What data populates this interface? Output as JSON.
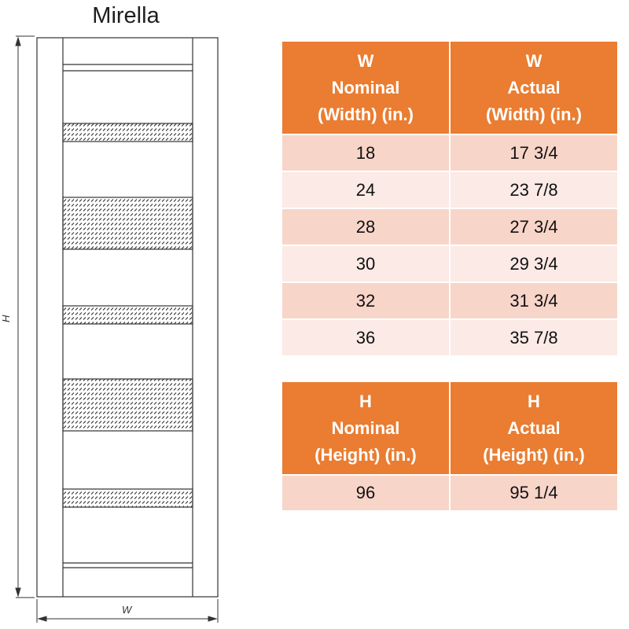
{
  "title": "Mirella",
  "drawing": {
    "height_label": "H",
    "width_label": "W"
  },
  "width_table": {
    "headers": [
      [
        "W",
        "Nominal",
        "(Width) (in.)"
      ],
      [
        "W",
        "Actual",
        "(Width) (in.)"
      ]
    ],
    "rows": [
      [
        "18",
        "17 3/4"
      ],
      [
        "24",
        "23 7/8"
      ],
      [
        "28",
        "27 3/4"
      ],
      [
        "30",
        "29 3/4"
      ],
      [
        "32",
        "31 3/4"
      ],
      [
        "36",
        "35 7/8"
      ]
    ]
  },
  "height_table": {
    "headers": [
      [
        "H",
        "Nominal",
        "(Height) (in.)"
      ],
      [
        "H",
        "Actual",
        "(Height) (in.)"
      ]
    ],
    "rows": [
      [
        "96",
        "95 1/4"
      ]
    ]
  },
  "colors": {
    "header_bg": "#ea7d31",
    "row_dark": "#f8d5c9",
    "row_light": "#fbeae5"
  }
}
